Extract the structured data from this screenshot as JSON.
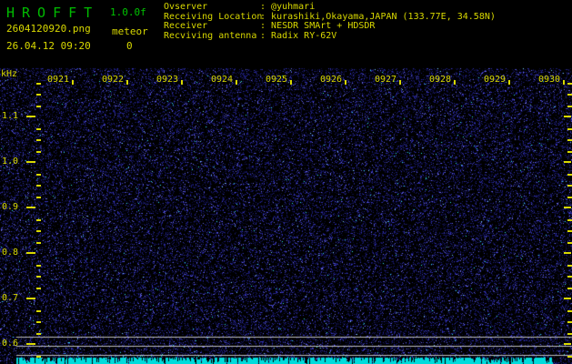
{
  "header": {
    "title": "HROFFT",
    "version": "1.0.0f",
    "filename": "2604120920.png",
    "echo_label": "meteor",
    "echo_count": "0",
    "datetime": "26.04.12 09:20",
    "colon": ":",
    "station_info": [
      {
        "label": "Ovserver",
        "value": "@yuhmari"
      },
      {
        "label": "Receiving Location",
        "value": "kurashiki,Okayama,JAPAN (133.77E, 34.58N)"
      },
      {
        "label": "Receiver",
        "value": "NESDR SMArt + HDSDR"
      },
      {
        "label": "Recviving antenna",
        "value": "Radix RY-62V"
      }
    ]
  },
  "spectrogram": {
    "freq_axis": {
      "unit": "kHz",
      "labels": [
        "1.1",
        "1.0",
        "0.9",
        "0.8",
        "0.7",
        "0.6"
      ]
    },
    "time_axis": {
      "labels": [
        "0921",
        "0922",
        "0923",
        "0924",
        "0925",
        "0926",
        "0927",
        "0928",
        "0929",
        "0930"
      ]
    },
    "reference_lines_khz": [
      "0.62",
      "0.60",
      "0.58"
    ],
    "colors": {
      "title_green": "#00bb00",
      "axis_yellow": "#d9d900",
      "ref_line_gray": "#bdbdbd",
      "signal_cyan": "#00dcdc",
      "noise_dim": "rgba(25,25,130,0.5)",
      "noise_low": "rgba(40,40,170,0.65)",
      "noise_mid": "rgba(60,60,215,0.85)",
      "noise_bright": "#6868f0",
      "noise_hot1": "#7ad0ff",
      "noise_hot2": "#30e8e8"
    }
  }
}
